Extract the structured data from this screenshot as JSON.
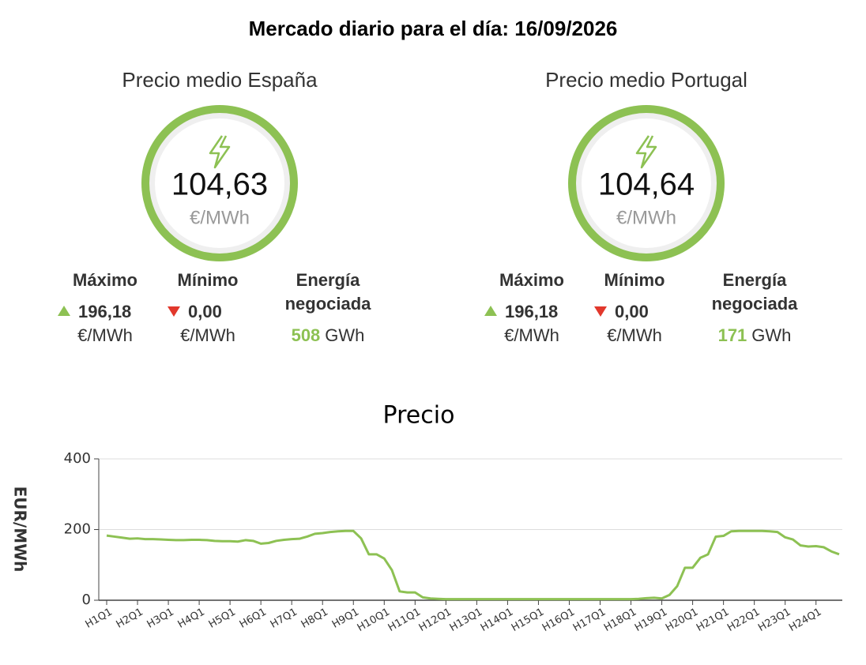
{
  "header": {
    "title": "Mercado diario para el día: 16/09/2026"
  },
  "panels": [
    {
      "title": "Precio medio España",
      "price": "104,63",
      "unit": "€/MWh",
      "max_label": "Máximo",
      "max_value": "196,18",
      "max_unit": "€/MWh",
      "min_label": "Mínimo",
      "min_value": "0,00",
      "min_unit": "€/MWh",
      "energy_label": [
        "Energía",
        "negociada"
      ],
      "energy_value": "508",
      "energy_unit": "GWh"
    },
    {
      "title": "Precio medio Portugal",
      "price": "104,64",
      "unit": "€/MWh",
      "max_label": "Máximo",
      "max_value": "196,18",
      "max_unit": "€/MWh",
      "min_label": "Mínimo",
      "min_value": "0,00",
      "min_unit": "€/MWh",
      "energy_label": [
        "Energía",
        "negociada"
      ],
      "energy_value": "171",
      "energy_unit": "GWh"
    }
  ],
  "chart_data": {
    "type": "line",
    "title": "Precio",
    "y_label": "EUR/MWh",
    "color": "#8dc153",
    "grid": true,
    "ylim": [
      0,
      400
    ],
    "yticks": [
      0,
      200,
      400
    ],
    "categories": [
      "H1Q1",
      null,
      null,
      null,
      "H2Q1",
      null,
      null,
      null,
      "H3Q1",
      null,
      null,
      null,
      "H4Q1",
      null,
      null,
      null,
      "H5Q1",
      null,
      null,
      null,
      "H6Q1",
      null,
      null,
      null,
      "H7Q1",
      null,
      null,
      null,
      "H8Q1",
      null,
      null,
      null,
      "H9Q1",
      null,
      null,
      null,
      "H10Q1",
      null,
      null,
      null,
      "H11Q1",
      null,
      null,
      null,
      "H12Q1",
      null,
      null,
      null,
      "H13Q1",
      null,
      null,
      null,
      "H14Q1",
      null,
      null,
      null,
      "H15Q1",
      null,
      null,
      null,
      "H16Q1",
      null,
      null,
      null,
      "H17Q1",
      null,
      null,
      null,
      "H18Q1",
      null,
      null,
      null,
      "H19Q1",
      null,
      null,
      null,
      "H20Q1",
      null,
      null,
      null,
      "H21Q1",
      null,
      null,
      null,
      "H22Q1",
      null,
      null,
      null,
      "H23Q1",
      null,
      null,
      null,
      "H24Q1",
      null,
      null,
      null
    ],
    "values": [
      183,
      180,
      177,
      174,
      175,
      173,
      173,
      172,
      171,
      170,
      170,
      171,
      171,
      170,
      168,
      167,
      167,
      166,
      170,
      168,
      160,
      162,
      168,
      171,
      173,
      174,
      180,
      188,
      190,
      193,
      195,
      196,
      196,
      175,
      130,
      130,
      118,
      85,
      25,
      22,
      22,
      8,
      5,
      4,
      3,
      3,
      3,
      3,
      3,
      3,
      3,
      3,
      3,
      3,
      3,
      3,
      3,
      3,
      3,
      3,
      3,
      3,
      3,
      3,
      3,
      3,
      3,
      3,
      3,
      4,
      6,
      7,
      5,
      15,
      40,
      92,
      92,
      120,
      130,
      180,
      182,
      195,
      196,
      196,
      196,
      196,
      195,
      193,
      178,
      172,
      155,
      152,
      153,
      150,
      138,
      130
    ]
  }
}
